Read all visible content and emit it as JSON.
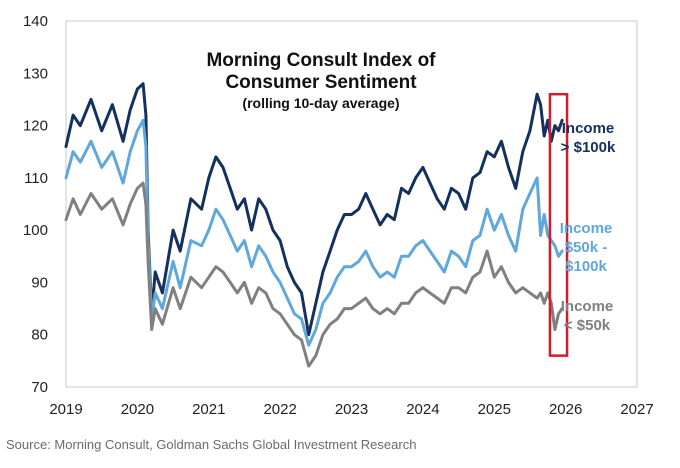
{
  "chart_data": {
    "type": "line",
    "title": "Morning Consult Index of",
    "title_line2": "Consumer Sentiment",
    "subtitle": "(rolling 10-day average)",
    "xlabel": "",
    "ylabel": "",
    "xlim": [
      2019,
      2027
    ],
    "ylim": [
      70,
      140
    ],
    "x_ticks": [
      "2019",
      "2020",
      "2021",
      "2022",
      "2023",
      "2024",
      "2025",
      "2026",
      "2027"
    ],
    "y_ticks": [
      "70",
      "80",
      "90",
      "100",
      "110",
      "120",
      "130",
      "140"
    ],
    "grid": false,
    "series": [
      {
        "name": "Income > $100k",
        "label_lines": [
          "Income",
          "> $100k"
        ],
        "color": "#13305f",
        "x": [
          2019.0,
          2019.1,
          2019.2,
          2019.35,
          2019.5,
          2019.65,
          2019.8,
          2019.9,
          2020.0,
          2020.08,
          2020.12,
          2020.15,
          2020.2,
          2020.25,
          2020.35,
          2020.5,
          2020.6,
          2020.75,
          2020.9,
          2021.0,
          2021.1,
          2021.2,
          2021.3,
          2021.4,
          2021.5,
          2021.6,
          2021.7,
          2021.8,
          2021.9,
          2022.0,
          2022.1,
          2022.2,
          2022.3,
          2022.4,
          2022.5,
          2022.6,
          2022.7,
          2022.8,
          2022.9,
          2023.0,
          2023.1,
          2023.2,
          2023.3,
          2023.4,
          2023.5,
          2023.6,
          2023.7,
          2023.8,
          2023.9,
          2024.0,
          2024.1,
          2024.2,
          2024.3,
          2024.4,
          2024.5,
          2024.6,
          2024.7,
          2024.8,
          2024.9,
          2025.0,
          2025.1,
          2025.2,
          2025.3,
          2025.4,
          2025.5,
          2025.6,
          2025.65,
          2025.7,
          2025.75,
          2025.8,
          2025.85,
          2025.9,
          2025.95
        ],
        "values": [
          116,
          122,
          120,
          125,
          119,
          124,
          117,
          123,
          127,
          128,
          122,
          100,
          84,
          92,
          88,
          100,
          96,
          106,
          104,
          110,
          114,
          112,
          108,
          104,
          106,
          100,
          106,
          104,
          100,
          98,
          93,
          90,
          88,
          80,
          86,
          92,
          96,
          100,
          103,
          103,
          104,
          107,
          104,
          101,
          103,
          102,
          108,
          107,
          110,
          112,
          109,
          106,
          104,
          108,
          107,
          104,
          110,
          111,
          115,
          114,
          117,
          112,
          108,
          115,
          119,
          126,
          124,
          118,
          121,
          117,
          120,
          119,
          121
        ]
      },
      {
        "name": "Income $50k - $100k",
        "label_lines": [
          "Income",
          "$50k -",
          "$100k"
        ],
        "color": "#5fa7dc",
        "x": [
          2019.0,
          2019.1,
          2019.2,
          2019.35,
          2019.5,
          2019.65,
          2019.8,
          2019.9,
          2020.0,
          2020.08,
          2020.12,
          2020.15,
          2020.2,
          2020.25,
          2020.35,
          2020.5,
          2020.6,
          2020.75,
          2020.9,
          2021.0,
          2021.1,
          2021.2,
          2021.3,
          2021.4,
          2021.5,
          2021.6,
          2021.7,
          2021.8,
          2021.9,
          2022.0,
          2022.1,
          2022.2,
          2022.3,
          2022.4,
          2022.5,
          2022.6,
          2022.7,
          2022.8,
          2022.9,
          2023.0,
          2023.1,
          2023.2,
          2023.3,
          2023.4,
          2023.5,
          2023.6,
          2023.7,
          2023.8,
          2023.9,
          2024.0,
          2024.1,
          2024.2,
          2024.3,
          2024.4,
          2024.5,
          2024.6,
          2024.7,
          2024.8,
          2024.9,
          2025.0,
          2025.1,
          2025.2,
          2025.3,
          2025.4,
          2025.5,
          2025.6,
          2025.65,
          2025.7,
          2025.75,
          2025.8,
          2025.85,
          2025.9,
          2025.95
        ],
        "values": [
          110,
          115,
          113,
          117,
          112,
          115,
          109,
          115,
          119,
          121,
          116,
          98,
          83,
          88,
          85,
          94,
          89,
          98,
          97,
          100,
          104,
          102,
          99,
          96,
          98,
          93,
          97,
          95,
          92,
          90,
          87,
          84,
          83,
          78,
          81,
          86,
          88,
          91,
          93,
          93,
          94,
          96,
          93,
          91,
          92,
          91,
          95,
          95,
          97,
          98,
          96,
          94,
          92,
          96,
          95,
          93,
          98,
          99,
          104,
          100,
          103,
          99,
          96,
          104,
          107,
          110,
          99,
          103,
          99,
          98,
          97,
          95,
          96
        ]
      },
      {
        "name": "Income < $50k",
        "label_lines": [
          "Income",
          "< $50k"
        ],
        "color": "#808080",
        "x": [
          2019.0,
          2019.1,
          2019.2,
          2019.35,
          2019.5,
          2019.65,
          2019.8,
          2019.9,
          2020.0,
          2020.08,
          2020.12,
          2020.15,
          2020.2,
          2020.25,
          2020.35,
          2020.5,
          2020.6,
          2020.75,
          2020.9,
          2021.0,
          2021.1,
          2021.2,
          2021.3,
          2021.4,
          2021.5,
          2021.6,
          2021.7,
          2021.8,
          2021.9,
          2022.0,
          2022.1,
          2022.2,
          2022.3,
          2022.4,
          2022.5,
          2022.6,
          2022.7,
          2022.8,
          2022.9,
          2023.0,
          2023.1,
          2023.2,
          2023.3,
          2023.4,
          2023.5,
          2023.6,
          2023.7,
          2023.8,
          2023.9,
          2024.0,
          2024.1,
          2024.2,
          2024.3,
          2024.4,
          2024.5,
          2024.6,
          2024.7,
          2024.8,
          2024.9,
          2025.0,
          2025.1,
          2025.2,
          2025.3,
          2025.4,
          2025.5,
          2025.6,
          2025.65,
          2025.7,
          2025.75,
          2025.8,
          2025.85,
          2025.9,
          2025.95
        ],
        "values": [
          102,
          106,
          103,
          107,
          104,
          106,
          101,
          105,
          108,
          109,
          105,
          94,
          81,
          85,
          82,
          89,
          85,
          91,
          89,
          91,
          93,
          92,
          90,
          88,
          90,
          86,
          89,
          88,
          85,
          84,
          82,
          80,
          79,
          74,
          76,
          80,
          82,
          83,
          85,
          85,
          86,
          87,
          85,
          84,
          85,
          84,
          86,
          86,
          88,
          89,
          88,
          87,
          86,
          89,
          89,
          88,
          91,
          92,
          96,
          91,
          93,
          90,
          88,
          89,
          88,
          87,
          88,
          86,
          88,
          86,
          81,
          84,
          85
        ]
      }
    ],
    "highlight_box": {
      "x_range": [
        2025.78,
        2026.02
      ],
      "y_range": [
        76,
        126
      ],
      "color": "#cc1f2d"
    }
  },
  "source_text": "Source: Morning Consult, Goldman Sachs Global Investment Research"
}
